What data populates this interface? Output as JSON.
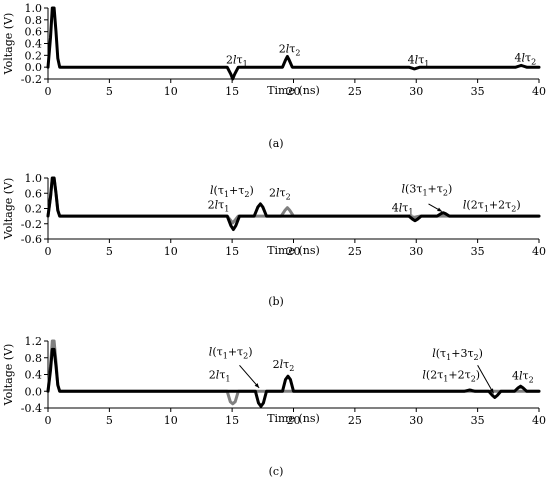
{
  "chart_data": [
    {
      "type": "line",
      "panel_label": "(a)",
      "xlabel": "Time (ns)",
      "ylabel": "Voltage (V)",
      "xlim": [
        0,
        40
      ],
      "ylim": [
        -0.2,
        1.0
      ],
      "xticks": [
        0,
        5,
        10,
        15,
        20,
        25,
        30,
        35,
        40
      ],
      "yticks": [
        -0.2,
        0.0,
        0.2,
        0.4,
        0.6,
        0.8,
        1.0
      ],
      "ytick_labels": [
        "-0.2",
        "0.0",
        "0.2",
        "0.4",
        "0.6",
        "0.8",
        "1.0"
      ],
      "grid": false,
      "series": [
        {
          "color": "#000000",
          "x": [
            0,
            0.2,
            0.35,
            0.5,
            0.65,
            0.8,
            0.95,
            14.6,
            14.9,
            15.05,
            15.2,
            15.5,
            19.1,
            19.35,
            19.5,
            19.65,
            19.9,
            29.4,
            29.7,
            29.85,
            30.0,
            30.3,
            38.1,
            38.4,
            38.55,
            38.7,
            39.0,
            40
          ],
          "y": [
            0.0,
            0.5,
            1.0,
            1.0,
            0.6,
            0.15,
            0.0,
            0.0,
            -0.12,
            -0.2,
            -0.12,
            0.0,
            0.0,
            0.12,
            0.18,
            0.12,
            0.0,
            0.0,
            -0.02,
            -0.03,
            -0.02,
            0.0,
            0.0,
            0.02,
            0.03,
            0.02,
            0.0,
            0.0
          ]
        }
      ],
      "annotations": [
        {
          "text": "2lτ1",
          "x": 14.5,
          "y": 0.06
        },
        {
          "text": "2lτ2",
          "x": 18.8,
          "y": 0.25
        },
        {
          "text": "4lτ1",
          "x": 29.3,
          "y": 0.06
        },
        {
          "text": "4lτ2",
          "x": 38.0,
          "y": 0.1
        }
      ]
    },
    {
      "type": "line",
      "panel_label": "(b)",
      "xlabel": "Time (ns)",
      "ylabel": "Voltage (V)",
      "xlim": [
        0,
        40
      ],
      "ylim": [
        -0.6,
        1.0
      ],
      "xticks": [
        0,
        5,
        10,
        15,
        20,
        25,
        30,
        35,
        40
      ],
      "yticks": [
        -0.6,
        -0.2,
        0.2,
        0.6,
        1.0
      ],
      "ytick_labels": [
        "-0.6",
        "-0.2",
        "0.2",
        "0.6",
        "1.0"
      ],
      "grid": false,
      "series": [
        {
          "color": "#808080",
          "x": [
            0,
            0.2,
            0.35,
            0.5,
            0.65,
            0.8,
            0.95,
            14.6,
            14.9,
            15.05,
            15.2,
            15.5,
            19.0,
            19.3,
            19.5,
            19.7,
            20.0,
            29.4,
            29.7,
            29.85,
            30.0,
            30.3,
            40
          ],
          "y": [
            0.0,
            0.5,
            1.0,
            1.0,
            0.6,
            0.15,
            0.0,
            0.0,
            -0.12,
            -0.18,
            -0.12,
            0.0,
            0.0,
            0.15,
            0.22,
            0.15,
            0.0,
            0.0,
            -0.02,
            -0.03,
            -0.02,
            0.0,
            0.0
          ]
        },
        {
          "color": "#000000",
          "x": [
            0,
            0.2,
            0.35,
            0.5,
            0.65,
            0.8,
            0.95,
            14.6,
            14.9,
            15.1,
            15.3,
            15.6,
            16.8,
            17.1,
            17.3,
            17.5,
            17.8,
            29.4,
            29.7,
            29.9,
            30.1,
            30.4,
            31.7,
            32.0,
            32.2,
            32.4,
            32.7,
            40
          ],
          "y": [
            0.0,
            0.5,
            1.0,
            1.0,
            0.6,
            0.15,
            0.0,
            0.0,
            -0.25,
            -0.35,
            -0.25,
            0.0,
            0.0,
            0.24,
            0.32,
            0.24,
            0.0,
            0.0,
            -0.08,
            -0.12,
            -0.08,
            0.0,
            0.0,
            0.06,
            0.09,
            0.06,
            0.0,
            0.0
          ]
        }
      ],
      "annotations": [
        {
          "text": "l(τ1+τ2)",
          "x": 13.2,
          "y": 0.58
        },
        {
          "text": "2lτ1",
          "x": 13.0,
          "y": 0.2
        },
        {
          "text": "2lτ2",
          "x": 18.0,
          "y": 0.52
        },
        {
          "text": "4lτ1",
          "x": 28.0,
          "y": 0.12
        },
        {
          "text": "l(3τ1+τ2)",
          "x": 28.8,
          "y": 0.62
        },
        {
          "text": "l(2τ1+2τ2)",
          "x": 33.8,
          "y": 0.2
        }
      ]
    },
    {
      "type": "line",
      "panel_label": "(c)",
      "xlabel": "Time (ns)",
      "ylabel": "Voltage (V)",
      "xlim": [
        0,
        40
      ],
      "ylim": [
        -0.4,
        1.2
      ],
      "xticks": [
        0,
        5,
        10,
        15,
        20,
        25,
        30,
        35,
        40
      ],
      "yticks": [
        -0.4,
        0.0,
        0.4,
        0.8,
        1.2
      ],
      "ytick_labels": [
        "-0.4",
        "0.0",
        "0.4",
        "0.8",
        "1.2"
      ],
      "grid": false,
      "series": [
        {
          "color": "#808080",
          "x": [
            0,
            0.2,
            0.35,
            0.5,
            0.65,
            0.8,
            0.95,
            14.6,
            14.85,
            15.05,
            15.25,
            15.5,
            40
          ],
          "y": [
            0.0,
            0.6,
            1.2,
            1.2,
            0.7,
            0.15,
            0.0,
            0.0,
            -0.25,
            -0.3,
            -0.25,
            0.0,
            0.0
          ]
        },
        {
          "color": "#000000",
          "x": [
            0,
            0.2,
            0.35,
            0.5,
            0.65,
            0.8,
            0.95,
            16.9,
            17.15,
            17.35,
            17.55,
            17.8,
            19.1,
            19.35,
            19.55,
            19.75,
            20.0,
            33.9,
            34.2,
            34.35,
            34.5,
            34.8,
            35.9,
            36.2,
            36.4,
            36.6,
            36.9,
            38.0,
            38.3,
            38.5,
            38.7,
            39.0,
            40
          ],
          "y": [
            0.0,
            0.5,
            1.0,
            1.0,
            0.6,
            0.15,
            0.0,
            0.0,
            -0.28,
            -0.36,
            -0.28,
            0.0,
            0.0,
            0.28,
            0.36,
            0.28,
            0.0,
            0.0,
            0.02,
            0.03,
            0.02,
            0.0,
            0.0,
            -0.1,
            -0.15,
            -0.1,
            0.0,
            0.0,
            0.08,
            0.12,
            0.08,
            0.0,
            0.0
          ]
        }
      ],
      "annotations": [
        {
          "text": "l(τ1+τ2)",
          "x": 13.1,
          "y": 0.85
        },
        {
          "text": "2lτ1",
          "x": 13.1,
          "y": 0.3
        },
        {
          "text": "2lτ2",
          "x": 18.3,
          "y": 0.55
        },
        {
          "text": "l(τ1+3τ2)",
          "x": 31.3,
          "y": 0.82
        },
        {
          "text": "l(2τ1+2τ2)",
          "x": 30.5,
          "y": 0.3
        },
        {
          "text": "4lτ2",
          "x": 37.8,
          "y": 0.28
        }
      ]
    }
  ]
}
